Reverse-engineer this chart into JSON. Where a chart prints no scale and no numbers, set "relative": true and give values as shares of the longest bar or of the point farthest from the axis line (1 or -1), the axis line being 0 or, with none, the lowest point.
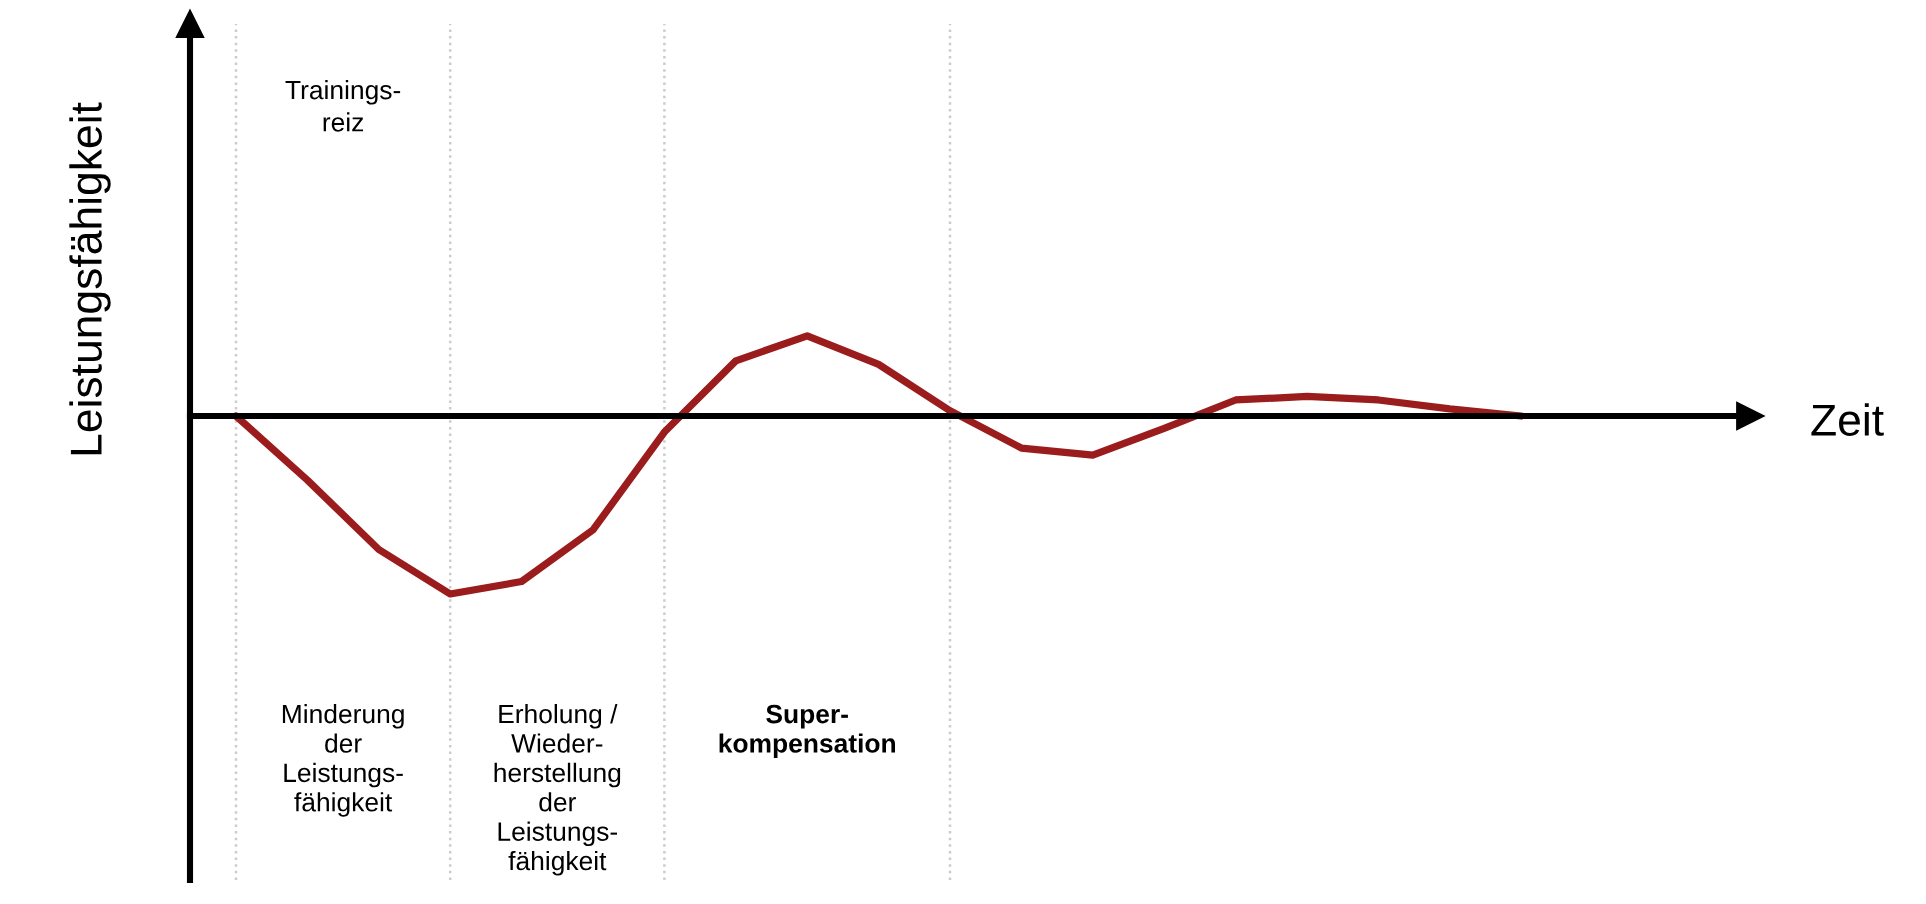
{
  "chart_data": {
    "type": "line",
    "relative": true,
    "ylabel": "Leistungsfähigkeit",
    "categories": [
      null,
      null,
      null,
      null,
      null,
      null,
      null,
      null,
      null,
      null,
      null,
      null,
      null,
      null,
      null,
      null,
      null,
      null,
      null
    ],
    "series": [
      {
        "color": "#9b1c1c",
        "values": [
          0,
          -0.36,
          -0.75,
          -1,
          -0.93,
          -0.64,
          -0.09,
          0.31,
          0.45,
          0.29,
          0.03,
          -0.18,
          -0.22,
          -0.07,
          0.09,
          0.11,
          0.09,
          0.04,
          0
        ]
      }
    ],
    "annotations": [
      "Trainings-\nreiz",
      "Minderung\nder\nLeistungs-\nfähigkeit",
      "Erholung /\nWieder-\nherstellung\nder\nLeistungs-\nfähigkeit",
      "Super-\nkompensation",
      "Zeit"
    ],
    "grid": "x",
    "legend": false,
    "marker": "none",
    "line_style": "solid",
    "tick_labels": false
  }
}
